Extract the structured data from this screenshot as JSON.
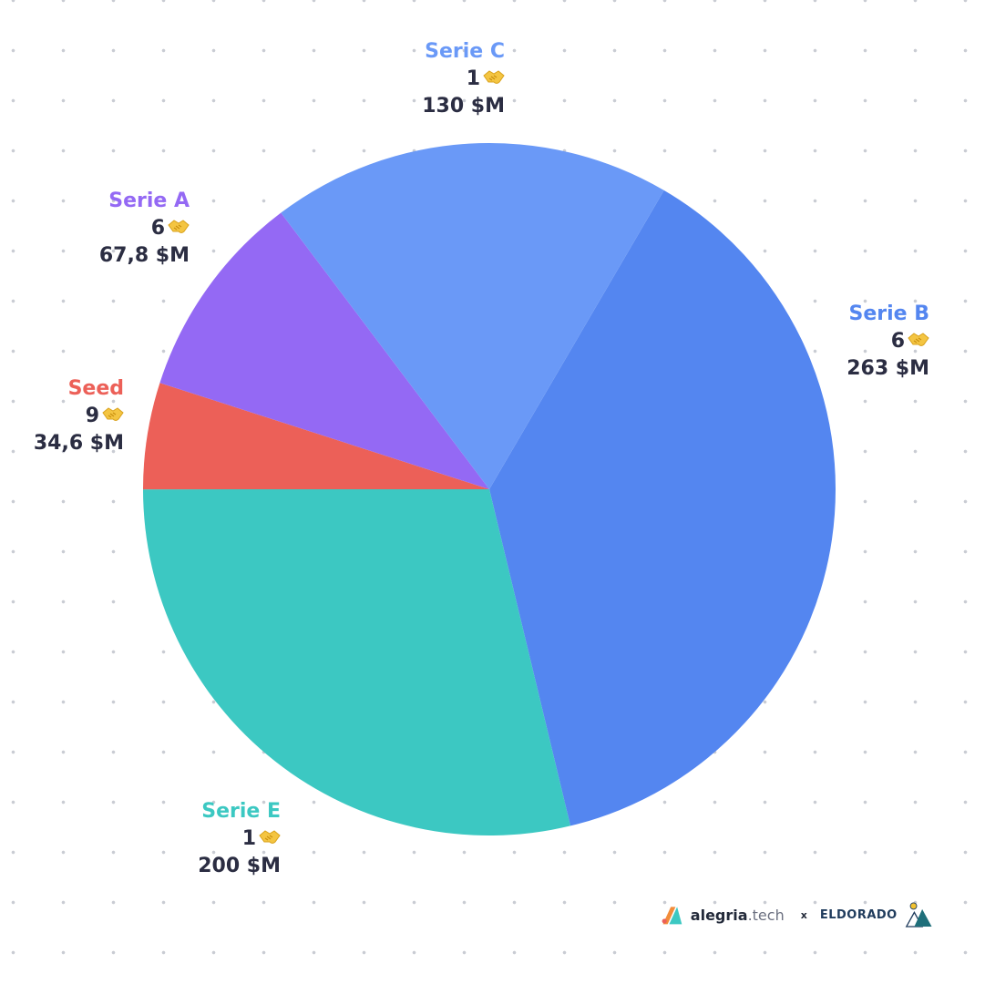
{
  "chart_data": {
    "type": "pie",
    "slices": [
      {
        "label": "Serie B",
        "count": "6",
        "amount": "263 $M",
        "value": 263,
        "color": "#5486f0"
      },
      {
        "label": "Serie E",
        "count": "1",
        "amount": "200 $M",
        "value": 200,
        "color": "#3cc8c2"
      },
      {
        "label": "Seed",
        "count": "9",
        "amount": "34,6 $M",
        "value": 34.6,
        "color": "#ec6058"
      },
      {
        "label": "Serie A",
        "count": "6",
        "amount": "67,8 $M",
        "value": 67.8,
        "color": "#9469f4"
      },
      {
        "label": "Serie C",
        "count": "1",
        "amount": "130 $M",
        "value": 130,
        "color": "#6a99f7"
      }
    ]
  },
  "footer": {
    "brand1_name": "alegria",
    "brand1_tld": ".tech",
    "separator": "x",
    "brand2_name": "ELDORADO"
  }
}
